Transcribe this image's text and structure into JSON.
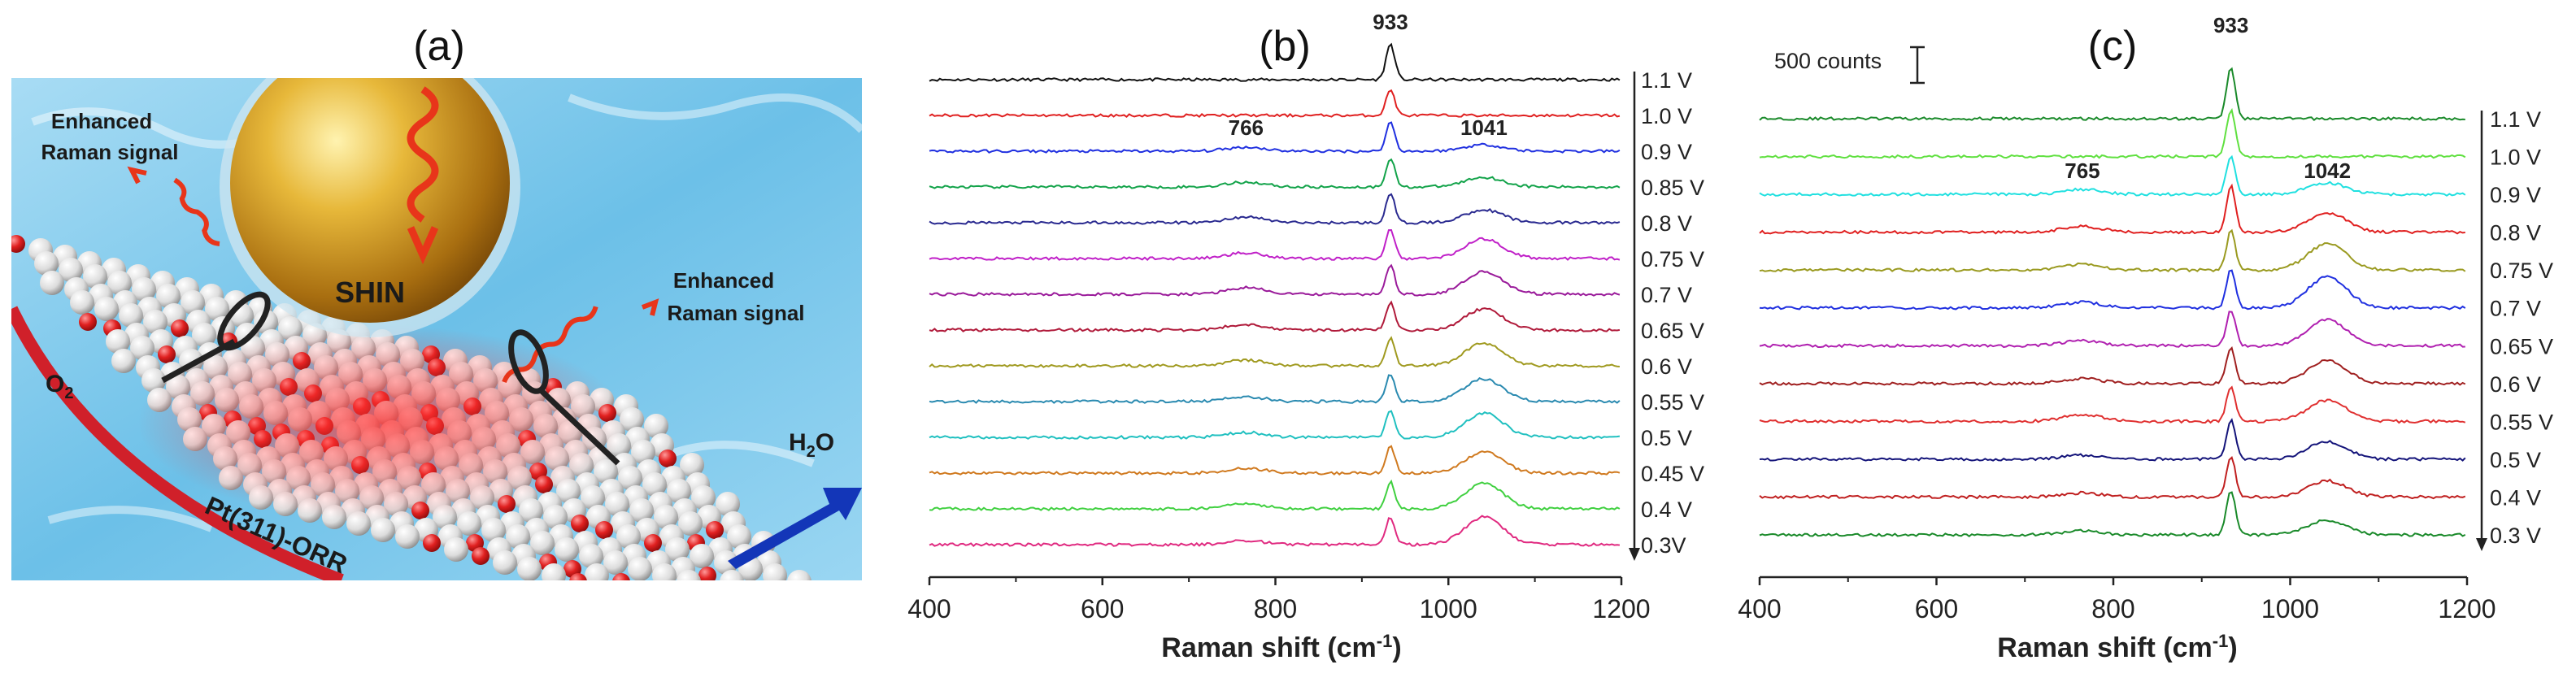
{
  "panel_a": {
    "label": "(a)",
    "texts": {
      "enhanced_left": "Enhanced",
      "raman_left": "Raman signal",
      "enhanced_right": "Enhanced",
      "raman_right": "Raman signal",
      "shin": "SHIN",
      "o2": "O",
      "o2_sub": "2",
      "surface": "Pt(311)-ORR",
      "h2o_h": "H",
      "h2o_sub": "2",
      "h2o_o": "O"
    },
    "colors": {
      "water": "#7cc6ea",
      "gold": "#d9a520",
      "atom": "#eeeeee",
      "oxygen": "#d62020",
      "wave": "#e8351a",
      "arrow": "#1336b8"
    }
  },
  "chart_data": [
    {
      "type": "line",
      "panel": "(b)",
      "title": "",
      "xlabel": "Raman shift (cm",
      "xlabel_sup": "-1",
      "xlabel_end": ")",
      "ylabel": "",
      "xlim": [
        400,
        1200
      ],
      "xticks": [
        400,
        600,
        800,
        1000,
        1200
      ],
      "top_peak_label": "933",
      "peak_labels": [
        {
          "text": "766",
          "x": 766,
          "series_index": 2
        },
        {
          "text": "1041",
          "x": 1041,
          "series_index": 2
        }
      ],
      "series": [
        {
          "name": "1.1 V",
          "color": "#111111",
          "peaks": [
            {
              "x": 933,
              "h": 44
            }
          ]
        },
        {
          "name": "1.0 V",
          "color": "#e02020",
          "peaks": [
            {
              "x": 933,
              "h": 32
            }
          ]
        },
        {
          "name": "0.9 V",
          "color": "#2030e0",
          "peaks": [
            {
              "x": 766,
              "h": 5
            },
            {
              "x": 933,
              "h": 36
            },
            {
              "x": 1041,
              "h": 8
            }
          ]
        },
        {
          "name": "0.85 V",
          "color": "#13a34a",
          "peaks": [
            {
              "x": 766,
              "h": 6
            },
            {
              "x": 933,
              "h": 36
            },
            {
              "x": 1041,
              "h": 12
            }
          ]
        },
        {
          "name": "0.8 V",
          "color": "#2a2a90",
          "peaks": [
            {
              "x": 766,
              "h": 7
            },
            {
              "x": 933,
              "h": 36
            },
            {
              "x": 1041,
              "h": 16
            }
          ]
        },
        {
          "name": "0.75 V",
          "color": "#c020c8",
          "peaks": [
            {
              "x": 766,
              "h": 7
            },
            {
              "x": 933,
              "h": 36
            },
            {
              "x": 1041,
              "h": 24
            }
          ]
        },
        {
          "name": "0.7 V",
          "color": "#9a1a9a",
          "peaks": [
            {
              "x": 766,
              "h": 8
            },
            {
              "x": 933,
              "h": 36
            },
            {
              "x": 1041,
              "h": 28
            }
          ]
        },
        {
          "name": "0.65 V",
          "color": "#b01a3a",
          "peaks": [
            {
              "x": 766,
              "h": 7
            },
            {
              "x": 933,
              "h": 34
            },
            {
              "x": 1041,
              "h": 26
            }
          ]
        },
        {
          "name": "0.6 V",
          "color": "#a09a20",
          "peaks": [
            {
              "x": 766,
              "h": 7
            },
            {
              "x": 933,
              "h": 34
            },
            {
              "x": 1041,
              "h": 28
            }
          ]
        },
        {
          "name": "0.55 V",
          "color": "#2a8ab0",
          "peaks": [
            {
              "x": 766,
              "h": 6
            },
            {
              "x": 933,
              "h": 34
            },
            {
              "x": 1041,
              "h": 28
            }
          ]
        },
        {
          "name": "0.5 V",
          "color": "#20c0c0",
          "peaks": [
            {
              "x": 766,
              "h": 6
            },
            {
              "x": 933,
              "h": 34
            },
            {
              "x": 1041,
              "h": 30
            }
          ]
        },
        {
          "name": "0.45 V",
          "color": "#d07a20",
          "peaks": [
            {
              "x": 766,
              "h": 6
            },
            {
              "x": 933,
              "h": 34
            },
            {
              "x": 1041,
              "h": 26
            }
          ]
        },
        {
          "name": "0.4 V",
          "color": "#40d040",
          "peaks": [
            {
              "x": 766,
              "h": 6
            },
            {
              "x": 933,
              "h": 34
            },
            {
              "x": 1041,
              "h": 32
            }
          ]
        },
        {
          "name": "0.3V",
          "color": "#e02a80",
          "peaks": [
            {
              "x": 766,
              "h": 5
            },
            {
              "x": 933,
              "h": 34
            },
            {
              "x": 1041,
              "h": 34
            }
          ]
        }
      ]
    },
    {
      "type": "line",
      "panel": "(c)",
      "title": "",
      "xlabel": "Raman shift (cm",
      "xlabel_sup": "-1",
      "xlabel_end": ")",
      "ylabel": "",
      "xlim": [
        400,
        1200
      ],
      "xticks": [
        400,
        600,
        800,
        1000,
        1200
      ],
      "top_peak_label": "933",
      "scale_bar": "500 counts",
      "peak_labels": [
        {
          "text": "765",
          "x": 765,
          "series_index": 2
        },
        {
          "text": "1042",
          "x": 1042,
          "series_index": 2
        }
      ],
      "series": [
        {
          "name": "1.1 V",
          "color": "#1a8a2a",
          "peaks": [
            {
              "x": 933,
              "h": 62
            }
          ]
        },
        {
          "name": "1.0 V",
          "color": "#60e040",
          "peaks": [
            {
              "x": 933,
              "h": 58
            }
          ]
        },
        {
          "name": "0.9 V",
          "color": "#20e0e0",
          "peaks": [
            {
              "x": 765,
              "h": 6
            },
            {
              "x": 933,
              "h": 48
            },
            {
              "x": 1042,
              "h": 14
            }
          ]
        },
        {
          "name": "0.8 V",
          "color": "#e02020",
          "peaks": [
            {
              "x": 765,
              "h": 7
            },
            {
              "x": 933,
              "h": 58
            },
            {
              "x": 1042,
              "h": 24
            }
          ]
        },
        {
          "name": "0.75 V",
          "color": "#9a9a20",
          "peaks": [
            {
              "x": 765,
              "h": 7
            },
            {
              "x": 933,
              "h": 48
            },
            {
              "x": 1042,
              "h": 32
            }
          ]
        },
        {
          "name": "0.7 V",
          "color": "#2030e0",
          "peaks": [
            {
              "x": 765,
              "h": 7
            },
            {
              "x": 933,
              "h": 48
            },
            {
              "x": 1042,
              "h": 38
            }
          ]
        },
        {
          "name": "0.65 V",
          "color": "#b020b0",
          "peaks": [
            {
              "x": 765,
              "h": 6
            },
            {
              "x": 933,
              "h": 44
            },
            {
              "x": 1042,
              "h": 32
            }
          ]
        },
        {
          "name": "0.6 V",
          "color": "#a02020",
          "peaks": [
            {
              "x": 765,
              "h": 6
            },
            {
              "x": 933,
              "h": 44
            },
            {
              "x": 1042,
              "h": 28
            }
          ]
        },
        {
          "name": "0.55 V",
          "color": "#e03030",
          "peaks": [
            {
              "x": 765,
              "h": 8
            },
            {
              "x": 933,
              "h": 44
            },
            {
              "x": 1042,
              "h": 26
            }
          ]
        },
        {
          "name": "0.5 V",
          "color": "#14147a",
          "peaks": [
            {
              "x": 765,
              "h": 5
            },
            {
              "x": 933,
              "h": 48
            },
            {
              "x": 1042,
              "h": 22
            }
          ]
        },
        {
          "name": "0.4 V",
          "color": "#c02020",
          "peaks": [
            {
              "x": 765,
              "h": 5
            },
            {
              "x": 933,
              "h": 50
            },
            {
              "x": 1042,
              "h": 20
            }
          ]
        },
        {
          "name": "0.3 V",
          "color": "#1a8a2a",
          "peaks": [
            {
              "x": 765,
              "h": 5
            },
            {
              "x": 933,
              "h": 54
            },
            {
              "x": 1042,
              "h": 18
            }
          ]
        }
      ]
    }
  ]
}
